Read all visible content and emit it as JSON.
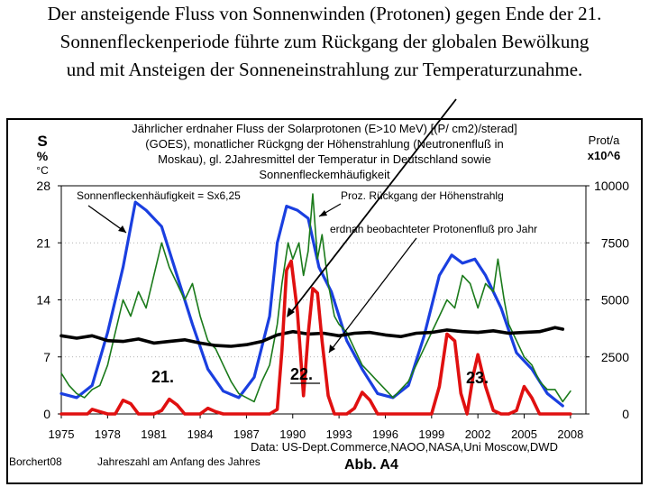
{
  "caption": {
    "line1": "Der ansteigende Fluss von Sonnenwinden (Protonen) gegen Ende der 21.",
    "line2": "Sonnenfleckenperiode führte zum Rückgang der globalen Bewölkung",
    "line3": "und mit Ansteigen der Sonneneinstrahlung zur Temperaturzunahme."
  },
  "chart_data": {
    "type": "line",
    "title_lines": [
      "Jährlicher erdnaher Fluss der Solarprotonen (E>10 MeV) [(P/ cm2)/sterad]",
      "(GOES), monatlicher Rückgng der Höhenstrahlung (Neutronenfluß in",
      "Moskau), gl. 2Jahresmittel der Temperatur in Deutschland sowie",
      "Sonnenfleckemhäufigkeit"
    ],
    "y_left_label": {
      "top": "S",
      "mid": "%",
      "unit": "°C"
    },
    "y_right_label": {
      "top": "Prot/a",
      "unit": "x10^6"
    },
    "x_ticks": [
      "1975",
      "1978",
      "1981",
      "1984",
      "1987",
      "1990",
      "1993",
      "1996",
      "1999",
      "2002",
      "2005",
      "2008"
    ],
    "x_range": [
      1975,
      2009
    ],
    "y_left_ticks": [
      "28",
      "21",
      "14",
      "7",
      "0"
    ],
    "y_left_range": [
      0,
      28
    ],
    "y_right_ticks": [
      "10000",
      "7500",
      "5000",
      "2500",
      "0"
    ],
    "y_right_range": [
      0,
      10000
    ],
    "annotations": {
      "sunspot": "Sonnenfleckenhäufigkeit = Sx6,25",
      "cosmic": "Proz. Rückgang der Höhenstrahlg",
      "proton": "erdnah beobachteter Protonenfluß pro Jahr"
    },
    "cycle_labels": [
      "21.",
      "22.",
      "23."
    ],
    "source": "Data: US-Dept.Commerce,NAOO,NASA,Uni Moscow,DWD",
    "author": "Borchert08",
    "xlabel": "Jahreszahl am Anfang des Jahres",
    "figure_id": "Abb. A4",
    "series": [
      {
        "name": "Sonnenfleckenhäufigkeit",
        "axis": "left",
        "color": "#1a3fe0",
        "x": [
          1975,
          1976,
          1977,
          1978,
          1979,
          1979.8,
          1980.5,
          1981.5,
          1982.5,
          1983.5,
          1984.5,
          1985.5,
          1986.5,
          1987.5,
          1988.5,
          1989,
          1989.6,
          1990.3,
          1991,
          1991.7,
          1992.5,
          1993.5,
          1994.5,
          1995.5,
          1996.5,
          1997.5,
          1998.5,
          1999.5,
          2000.3,
          2001,
          2001.8,
          2002.5,
          2003.5,
          2004.5,
          2005.5,
          2006.5,
          2007.5
        ],
        "y": [
          2.5,
          2.0,
          3.5,
          10,
          18,
          26,
          25,
          23,
          17,
          11,
          5.5,
          2.8,
          2.0,
          4.5,
          12,
          21,
          25.5,
          25,
          24,
          18,
          15,
          9,
          5.5,
          2.5,
          2.0,
          3.5,
          9.5,
          17,
          19.5,
          18.5,
          19,
          17,
          13,
          7.5,
          5.5,
          2.5,
          1.0
        ]
      },
      {
        "name": "Proz. Rückgang der Höhenstrahlg",
        "axis": "left",
        "color": "#1a7a1a",
        "x": [
          1975,
          1975.5,
          1976,
          1976.5,
          1977,
          1977.5,
          1978,
          1978.5,
          1979,
          1979.5,
          1980,
          1980.5,
          1981,
          1981.5,
          1982,
          1982.5,
          1983,
          1983.5,
          1984,
          1984.5,
          1985,
          1985.5,
          1986,
          1986.5,
          1987,
          1987.5,
          1988,
          1988.5,
          1989,
          1989.3,
          1989.7,
          1990,
          1990.4,
          1990.7,
          1991,
          1991.3,
          1991.6,
          1991.9,
          1992.3,
          1992.7,
          1993,
          1993.5,
          1994,
          1994.5,
          1995,
          1995.5,
          1996,
          1996.5,
          1997,
          1997.5,
          1998,
          1998.5,
          1999,
          1999.5,
          2000,
          2000.5,
          2001,
          2001.5,
          2002,
          2002.5,
          2003,
          2003.3,
          2003.7,
          2004,
          2004.5,
          2005,
          2005.5,
          2006,
          2006.5,
          2007,
          2007.5,
          2008
        ],
        "y": [
          5,
          3.5,
          2.5,
          2,
          3,
          3.5,
          6,
          10,
          14,
          12,
          15,
          13,
          17,
          21,
          18,
          16,
          14,
          16,
          12,
          9,
          8,
          6,
          4,
          2.5,
          2,
          1.5,
          4,
          6,
          11,
          16,
          21,
          19,
          21,
          17,
          20,
          27,
          19,
          22,
          16,
          12,
          11,
          10,
          8,
          6,
          5,
          4,
          3,
          2,
          3,
          4,
          6,
          8,
          10,
          12,
          14,
          13,
          17,
          16,
          13,
          16,
          15,
          19,
          14,
          11,
          9,
          7,
          6,
          4,
          3,
          3,
          1.5,
          2.8
        ]
      },
      {
        "name": "2-Jahresmittel Temperatur Deutschland",
        "axis": "left",
        "color": "#000000",
        "x": [
          1975,
          1976,
          1977,
          1978,
          1979,
          1980,
          1981,
          1982,
          1983,
          1984,
          1985,
          1986,
          1987,
          1988,
          1989,
          1990,
          1991,
          1992,
          1993,
          1994,
          1995,
          1996,
          1997,
          1998,
          1999,
          2000,
          2001,
          2002,
          2003,
          2004,
          2005,
          2006,
          2007,
          2007.5
        ],
        "y": [
          9.6,
          9.3,
          9.6,
          9.0,
          8.9,
          9.2,
          8.7,
          8.9,
          9.1,
          8.7,
          8.4,
          8.3,
          8.5,
          8.9,
          9.7,
          10.1,
          9.8,
          9.9,
          9.6,
          9.9,
          10.0,
          9.7,
          9.5,
          9.9,
          10.0,
          10.3,
          10.1,
          10.0,
          10.2,
          9.9,
          10.0,
          10.1,
          10.6,
          10.4
        ]
      },
      {
        "name": "erdnah beobachteter Protonenfluß pro Jahr",
        "axis": "right",
        "color": "#e01010",
        "x": [
          1975,
          1976,
          1976.7,
          1977,
          1977.5,
          1978,
          1978.5,
          1979,
          1979.5,
          1980,
          1980.5,
          1981,
          1981.5,
          1982,
          1982.5,
          1983,
          1983.5,
          1984,
          1984.5,
          1985,
          1985.5,
          1986,
          1986.5,
          1987,
          1987.5,
          1988,
          1988.5,
          1989,
          1989.3,
          1989.6,
          1989.9,
          1990.3,
          1990.7,
          1991,
          1991.3,
          1991.6,
          1991.9,
          1992.3,
          1992.7,
          1993,
          1993.5,
          1994,
          1994.5,
          1995,
          1995.5,
          1996,
          1996.5,
          1997,
          1997.5,
          1998,
          1998.5,
          1999,
          1999.5,
          2000,
          2000.5,
          2000.9,
          2001.3,
          2001.7,
          2002,
          2002.5,
          2003,
          2003.5,
          2004,
          2004.5,
          2005,
          2005.5,
          2006,
          2006.5,
          2007,
          2007.5,
          2008
        ],
        "y": [
          0,
          0,
          0,
          200,
          100,
          0,
          0,
          600,
          450,
          0,
          0,
          0,
          150,
          650,
          400,
          0,
          0,
          0,
          250,
          100,
          0,
          0,
          0,
          0,
          0,
          0,
          0,
          200,
          2800,
          6300,
          6700,
          4500,
          800,
          3500,
          5500,
          5300,
          3200,
          800,
          0,
          0,
          0,
          250,
          950,
          600,
          0,
          0,
          0,
          0,
          0,
          0,
          0,
          0,
          1200,
          3500,
          3200,
          900,
          0,
          1700,
          2600,
          1200,
          150,
          0,
          0,
          150,
          1200,
          700,
          0,
          0,
          0,
          0,
          0
        ]
      }
    ]
  }
}
